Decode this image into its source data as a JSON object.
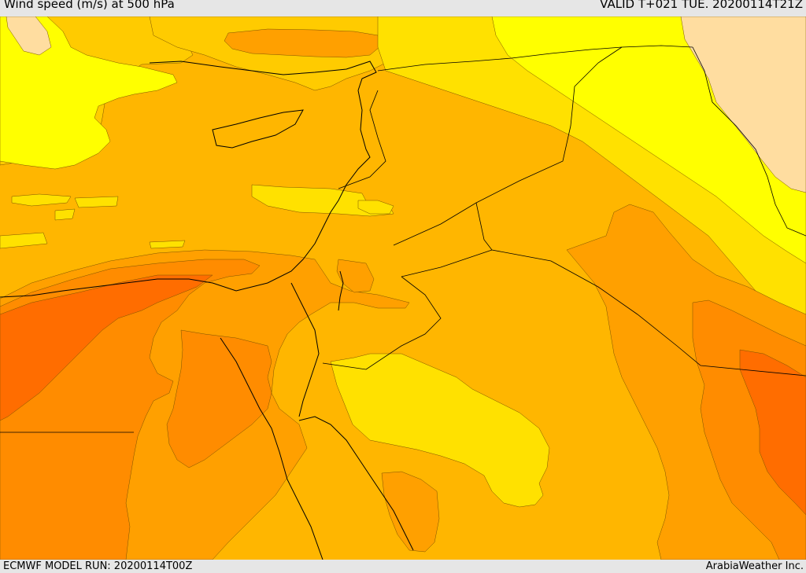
{
  "header": {
    "title": "Wind speed (m/s) at 500 hPa",
    "valid": "VALID T+021 TUE. 20200114T21Z"
  },
  "footer": {
    "model_run": "ECMWF MODEL RUN: 20200114T00Z",
    "brand": "ArabiaWeather Inc."
  },
  "map": {
    "colors": {
      "white": "#ffffff",
      "peach": "#ffdda0",
      "yellow": "#ffff00",
      "light_yellow": "#ffe100",
      "gold": "#ffcb00",
      "amber": "#ffb600",
      "light_orange": "#ffa000",
      "orange": "#ff8c00",
      "dark_orange": "#ff6d00",
      "red_orange": "#ff5000",
      "land_boundary": "#000000"
    }
  }
}
